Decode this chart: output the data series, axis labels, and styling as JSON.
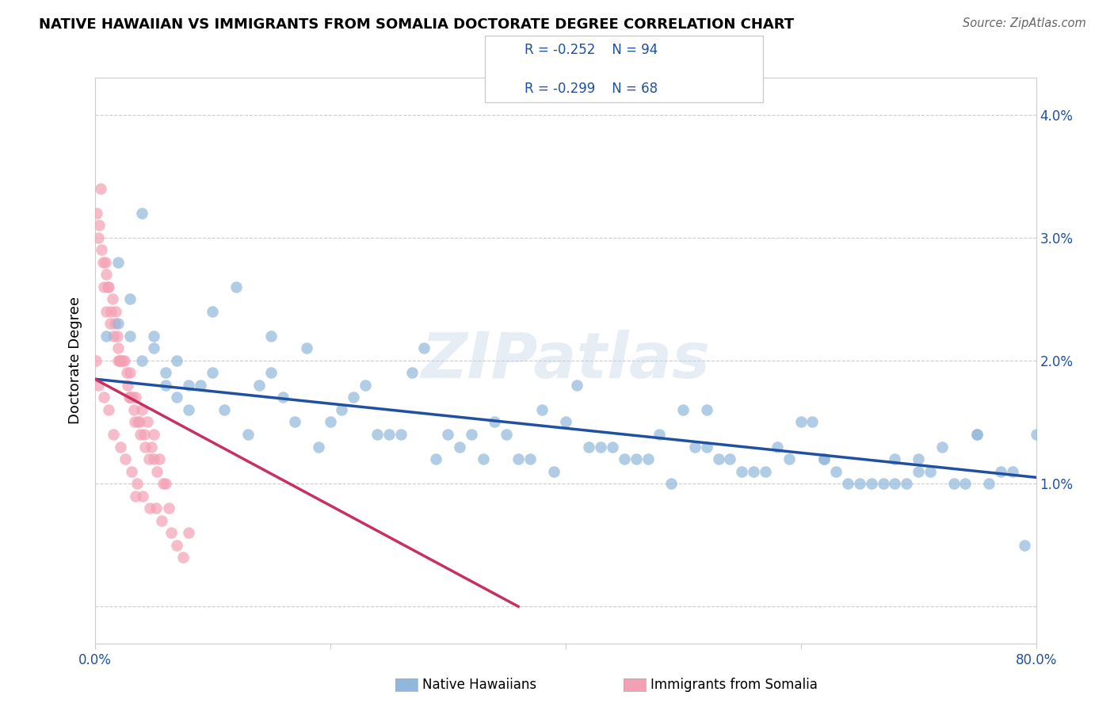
{
  "title": "NATIVE HAWAIIAN VS IMMIGRANTS FROM SOMALIA DOCTORATE DEGREE CORRELATION CHART",
  "source": "Source: ZipAtlas.com",
  "ylabel": "Doctorate Degree",
  "xlim": [
    0.0,
    0.8
  ],
  "ylim": [
    -0.003,
    0.043
  ],
  "yticks": [
    0.0,
    0.01,
    0.02,
    0.03,
    0.04
  ],
  "ytick_labels": [
    "",
    "1.0%",
    "2.0%",
    "3.0%",
    "4.0%"
  ],
  "xtick_positions": [
    0.0,
    0.2,
    0.4,
    0.6,
    0.8
  ],
  "xtick_labels": [
    "0.0%",
    "",
    "",
    "",
    "80.0%"
  ],
  "blue_R": -0.252,
  "blue_N": 94,
  "pink_R": -0.299,
  "pink_N": 68,
  "blue_color": "#90B8DC",
  "pink_color": "#F4A0B4",
  "blue_line_color": "#2050A0",
  "pink_line_color": "#C83060",
  "watermark_text": "ZIPatlas",
  "legend_label_blue": "Native Hawaiians",
  "legend_label_pink": "Immigrants from Somalia",
  "blue_scatter_x": [
    0.02,
    0.04,
    0.12,
    0.05,
    0.08,
    0.15,
    0.22,
    0.3,
    0.38,
    0.45,
    0.52,
    0.58,
    0.65,
    0.7,
    0.75,
    0.8,
    0.03,
    0.07,
    0.1,
    0.18,
    0.25,
    0.32,
    0.4,
    0.48,
    0.55,
    0.62,
    0.68,
    0.73,
    0.78,
    0.01,
    0.06,
    0.09,
    0.14,
    0.2,
    0.28,
    0.35,
    0.43,
    0.5,
    0.57,
    0.63,
    0.69,
    0.76,
    0.04,
    0.11,
    0.16,
    0.23,
    0.31,
    0.39,
    0.46,
    0.53,
    0.6,
    0.67,
    0.72,
    0.79,
    0.02,
    0.08,
    0.13,
    0.21,
    0.29,
    0.37,
    0.44,
    0.51,
    0.59,
    0.66,
    0.71,
    0.77,
    0.05,
    0.1,
    0.17,
    0.26,
    0.34,
    0.42,
    0.49,
    0.56,
    0.64,
    0.7,
    0.74,
    0.03,
    0.07,
    0.19,
    0.27,
    0.36,
    0.47,
    0.54,
    0.61,
    0.68,
    0.75,
    0.06,
    0.15,
    0.24,
    0.33,
    0.41,
    0.52,
    0.62
  ],
  "blue_scatter_y": [
    0.028,
    0.032,
    0.026,
    0.022,
    0.018,
    0.019,
    0.017,
    0.014,
    0.016,
    0.012,
    0.013,
    0.013,
    0.01,
    0.011,
    0.014,
    0.014,
    0.025,
    0.02,
    0.024,
    0.021,
    0.014,
    0.014,
    0.015,
    0.014,
    0.011,
    0.012,
    0.012,
    0.01,
    0.011,
    0.022,
    0.019,
    0.018,
    0.018,
    0.015,
    0.021,
    0.014,
    0.013,
    0.016,
    0.011,
    0.011,
    0.01,
    0.01,
    0.02,
    0.016,
    0.017,
    0.018,
    0.013,
    0.011,
    0.012,
    0.012,
    0.015,
    0.01,
    0.013,
    0.005,
    0.023,
    0.016,
    0.014,
    0.016,
    0.012,
    0.012,
    0.013,
    0.013,
    0.012,
    0.01,
    0.011,
    0.011,
    0.021,
    0.019,
    0.015,
    0.014,
    0.015,
    0.013,
    0.01,
    0.011,
    0.01,
    0.012,
    0.01,
    0.022,
    0.017,
    0.013,
    0.019,
    0.012,
    0.012,
    0.012,
    0.015,
    0.01,
    0.014,
    0.018,
    0.022,
    0.014,
    0.012,
    0.018,
    0.016,
    0.012
  ],
  "pink_scatter_x": [
    0.003,
    0.005,
    0.007,
    0.008,
    0.01,
    0.01,
    0.012,
    0.013,
    0.015,
    0.016,
    0.018,
    0.02,
    0.02,
    0.022,
    0.025,
    0.028,
    0.03,
    0.03,
    0.033,
    0.035,
    0.038,
    0.04,
    0.042,
    0.045,
    0.048,
    0.05,
    0.055,
    0.06,
    0.002,
    0.004,
    0.006,
    0.009,
    0.011,
    0.014,
    0.017,
    0.019,
    0.021,
    0.024,
    0.027,
    0.029,
    0.032,
    0.034,
    0.037,
    0.039,
    0.043,
    0.046,
    0.05,
    0.053,
    0.058,
    0.063,
    0.001,
    0.003,
    0.008,
    0.012,
    0.016,
    0.022,
    0.026,
    0.031,
    0.036,
    0.041,
    0.047,
    0.052,
    0.057,
    0.065,
    0.07,
    0.075,
    0.08,
    0.035
  ],
  "pink_scatter_y": [
    0.03,
    0.034,
    0.028,
    0.026,
    0.027,
    0.024,
    0.026,
    0.023,
    0.025,
    0.022,
    0.024,
    0.021,
    0.02,
    0.02,
    0.02,
    0.018,
    0.019,
    0.017,
    0.016,
    0.017,
    0.015,
    0.016,
    0.014,
    0.015,
    0.013,
    0.014,
    0.012,
    0.01,
    0.032,
    0.031,
    0.029,
    0.028,
    0.026,
    0.024,
    0.023,
    0.022,
    0.02,
    0.02,
    0.019,
    0.017,
    0.017,
    0.015,
    0.015,
    0.014,
    0.013,
    0.012,
    0.012,
    0.011,
    0.01,
    0.008,
    0.02,
    0.018,
    0.017,
    0.016,
    0.014,
    0.013,
    0.012,
    0.011,
    0.01,
    0.009,
    0.008,
    0.008,
    0.007,
    0.006,
    0.005,
    0.004,
    0.006,
    0.009
  ],
  "blue_trendline_x": [
    0.0,
    0.8
  ],
  "blue_trendline_y": [
    0.0185,
    0.0105
  ],
  "pink_trendline_x": [
    0.0,
    0.36
  ],
  "pink_trendline_y": [
    0.0185,
    0.0
  ]
}
